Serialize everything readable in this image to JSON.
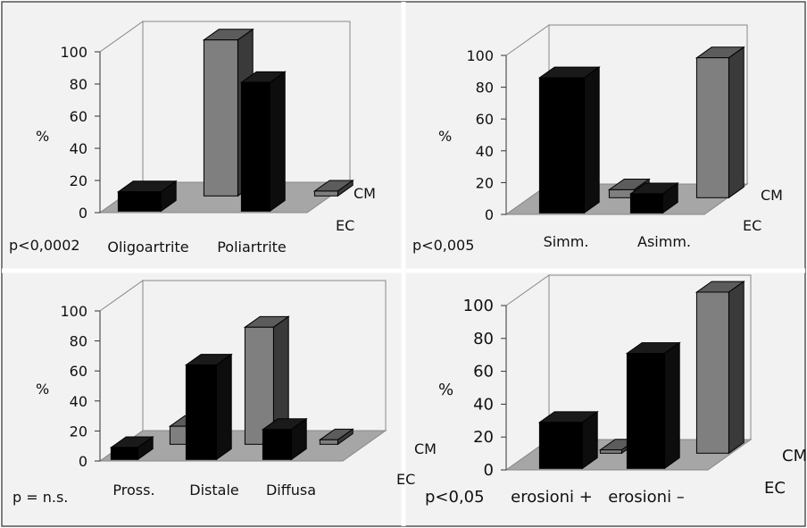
{
  "colors": {
    "background": "#f2f2f2",
    "border": "#555555",
    "floor": "#a6a6a6",
    "ec_front": "#000000",
    "ec_top": "#1a1a1a",
    "ec_side": "#0d0d0d",
    "cm_front": "#7f7f7f",
    "cm_top": "#5c5c5c",
    "cm_side": "#3a3a3a",
    "grid": "#888888"
  },
  "chart_data": [
    {
      "type": "bar",
      "categories": [
        "Oligoartrite",
        "Poliartrite"
      ],
      "series": [
        {
          "name": "EC",
          "values": [
            12,
            80
          ]
        },
        {
          "name": "CM",
          "values": [
            97,
            3
          ]
        }
      ],
      "yticks": [
        "0",
        "20",
        "40",
        "60",
        "80",
        "100"
      ],
      "ylabel": "%",
      "ylim": [
        0,
        100
      ],
      "pvalue": "p<0,0002"
    },
    {
      "type": "bar",
      "categories": [
        "Simm.",
        "Asimm."
      ],
      "series": [
        {
          "name": "EC",
          "values": [
            85,
            12
          ]
        },
        {
          "name": "CM",
          "values": [
            5,
            88
          ]
        }
      ],
      "yticks": [
        "0",
        "20",
        "40",
        "60",
        "80",
        "100"
      ],
      "ylabel": "%",
      "ylim": [
        0,
        100
      ],
      "pvalue": "p<0,005"
    },
    {
      "type": "bar",
      "categories": [
        "Pross.",
        "Distale",
        "Diffusa"
      ],
      "series": [
        {
          "name": "EC",
          "values": [
            8,
            63,
            20
          ]
        },
        {
          "name": "CM",
          "values": [
            12,
            78,
            3
          ]
        }
      ],
      "yticks": [
        "0",
        "20",
        "40",
        "60",
        "80",
        "100"
      ],
      "ylabel": "%",
      "ylim": [
        0,
        100
      ],
      "pvalue": "p = n.s."
    },
    {
      "type": "bar",
      "categories": [
        "erosioni +",
        "erosioni –"
      ],
      "series": [
        {
          "name": "EC",
          "values": [
            28,
            70
          ]
        },
        {
          "name": "CM",
          "values": [
            2,
            98
          ]
        }
      ],
      "yticks": [
        "0",
        "20",
        "40",
        "60",
        "80",
        "100"
      ],
      "ylabel": "%",
      "ylim": [
        0,
        100
      ],
      "pvalue": "p<0,05"
    }
  ]
}
